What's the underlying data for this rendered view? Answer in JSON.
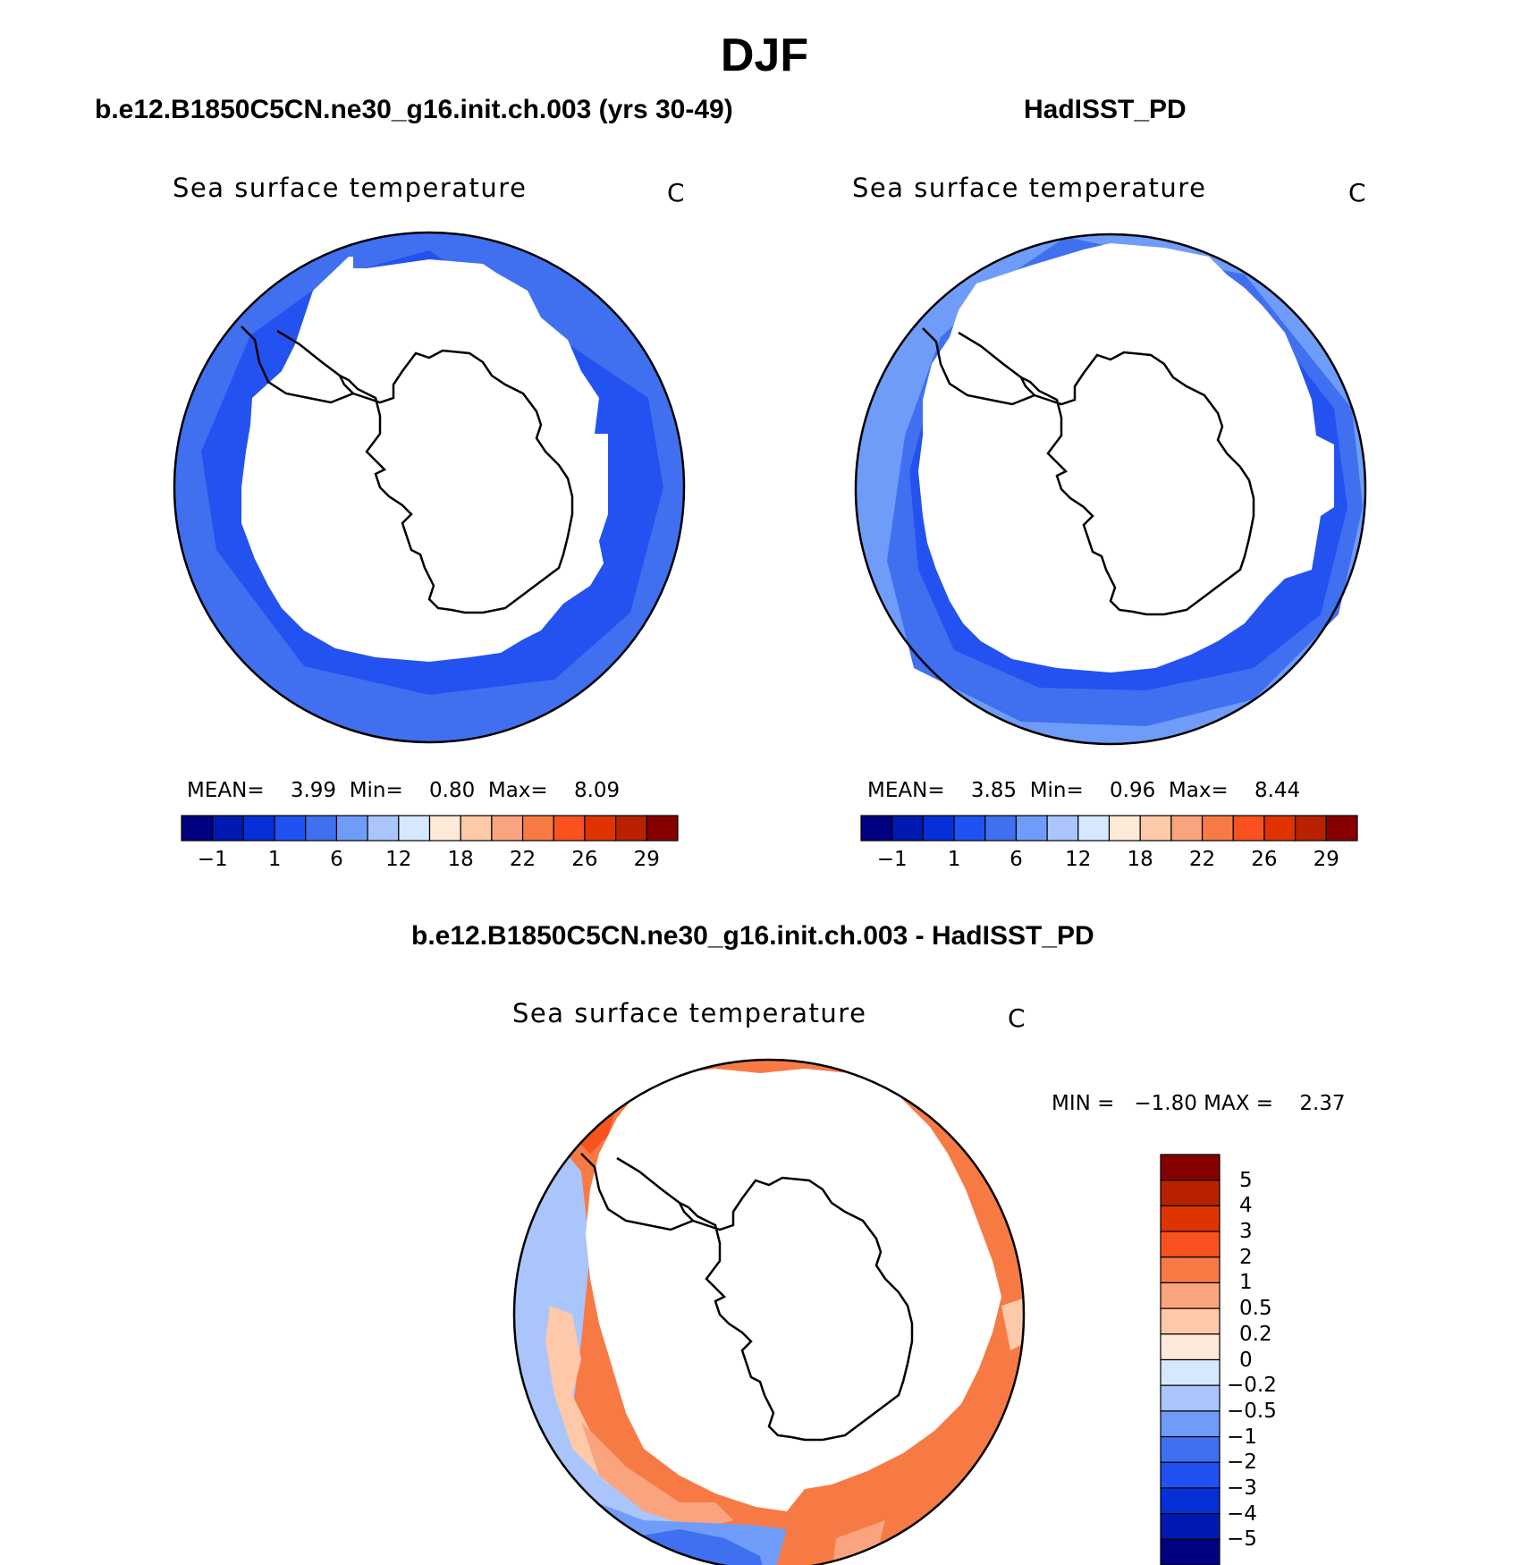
{
  "page": {
    "title": "DJF",
    "colors": {
      "background": "#ffffff",
      "coastline": "#000000",
      "land_and_ice": "#ffffff"
    }
  },
  "chart_data": [
    {
      "type": "heatmap",
      "projection": "south-polar-stereographic",
      "case_title": "b.e12.B1850C5CN.ne30_g16.init.ch.003 (yrs 30-49)",
      "variable": "Sea surface temperature",
      "units": "C",
      "stats": {
        "mean_label": "MEAN=",
        "mean": "3.99",
        "min_label": "Min=",
        "min": "0.80",
        "max_label": "Max=",
        "max": "8.09"
      },
      "colorbar": {
        "orientation": "horizontal",
        "levels": [
          "-1",
          "1",
          "6",
          "12",
          "18",
          "22",
          "26",
          "29"
        ],
        "tick_labels": [
          "−1",
          "1",
          "6",
          "12",
          "18",
          "22",
          "26",
          "29"
        ],
        "colors": [
          "#000080",
          "#0019b0",
          "#0530d8",
          "#1f52f0",
          "#4070f0",
          "#6f9cf8",
          "#a9c5fb",
          "#d6e8ff",
          "#ffe9d8",
          "#fdc9a8",
          "#f9a47e",
          "#f77a45",
          "#f9521e",
          "#e03400",
          "#b82200",
          "#870000"
        ]
      },
      "field_levels": {
        "ring_outer": 4.5,
        "ring_inner": 2.5
      }
    },
    {
      "type": "heatmap",
      "projection": "south-polar-stereographic",
      "case_title": "HadISST_PD",
      "variable": "Sea surface temperature",
      "units": "C",
      "stats": {
        "mean_label": "MEAN=",
        "mean": "3.85",
        "min_label": "Min=",
        "min": "0.96",
        "max_label": "Max=",
        "max": "8.44"
      },
      "colorbar": {
        "orientation": "horizontal",
        "levels": [
          "-1",
          "1",
          "6",
          "12",
          "18",
          "22",
          "26",
          "29"
        ],
        "tick_labels": [
          "−1",
          "1",
          "6",
          "12",
          "18",
          "22",
          "26",
          "29"
        ],
        "colors": [
          "#000080",
          "#0019b0",
          "#0530d8",
          "#1f52f0",
          "#4070f0",
          "#6f9cf8",
          "#a9c5fb",
          "#d6e8ff",
          "#ffe9d8",
          "#fdc9a8",
          "#f9a47e",
          "#f77a45",
          "#f9521e",
          "#e03400",
          "#b82200",
          "#870000"
        ]
      },
      "field_levels": {
        "ring_outer": 6.5,
        "ring_inner": 3.0
      }
    },
    {
      "type": "heatmap",
      "projection": "south-polar-stereographic",
      "case_title": "b.e12.B1850C5CN.ne30_g16.init.ch.003 - HadISST_PD",
      "variable": "Sea surface temperature",
      "units": "C",
      "stats": {
        "min_label": "MIN =",
        "min": "−1.80",
        "max_label": "MAX =",
        "max": "2.37"
      },
      "colorbar": {
        "orientation": "vertical",
        "levels": [
          "5",
          "4",
          "3",
          "2",
          "1",
          "0.5",
          "0.2",
          "0",
          "-0.2",
          "-0.5",
          "-1",
          "-2",
          "-3",
          "-4",
          "-5"
        ],
        "tick_labels": [
          "5",
          "4",
          "3",
          "2",
          "1",
          "0.5",
          "0.2",
          "0",
          "−0.2",
          "−0.5",
          "−1",
          "−2",
          "−3",
          "−4",
          "−5"
        ],
        "colors_top_to_bottom": [
          "#870000",
          "#b82200",
          "#e03400",
          "#f9521e",
          "#f77a45",
          "#f9a47e",
          "#fdc9a8",
          "#ffe9d8",
          "#d6e8ff",
          "#a9c5fb",
          "#6f9cf8",
          "#4070f0",
          "#1f52f0",
          "#0530d8",
          "#0019b0",
          "#000080"
        ]
      },
      "field_levels": {
        "east_sector": 1.5,
        "west_sector": -0.3,
        "south_sector": -0.8
      }
    }
  ]
}
